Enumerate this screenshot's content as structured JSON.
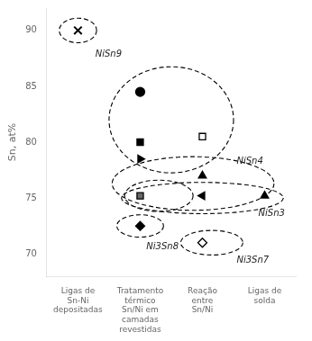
{
  "chart_data": {
    "type": "scatter",
    "ylabel": "Sn, at%",
    "ylim": [
      68,
      92
    ],
    "yticks": [
      70,
      75,
      80,
      85,
      90
    ],
    "grid": false,
    "categories": [
      "Ligas de\nSn-Ni\ndepositadas",
      "Tratamento\ntérmico\nSn/Ni em\ncamadas\nrevestidas",
      "Reação\nentre\nSn/Ni",
      "Ligas de\nsolda"
    ],
    "series": [
      {
        "marker": "x",
        "color": "black",
        "values": [
          90,
          null,
          null,
          null
        ]
      },
      {
        "marker": "circle",
        "color": "black",
        "values": [
          null,
          84.5,
          null,
          null
        ]
      },
      {
        "marker": "square",
        "color": "black",
        "values": [
          null,
          80,
          null,
          null
        ]
      },
      {
        "marker": "triangle_right",
        "color": "black",
        "values": [
          null,
          78.5,
          null,
          null
        ]
      },
      {
        "marker": "square",
        "color": "white",
        "values": [
          null,
          null,
          80.5,
          null
        ]
      },
      {
        "marker": "triangle_up",
        "color": "black",
        "values": [
          null,
          null,
          77,
          null
        ]
      },
      {
        "marker": "square",
        "color": "dimgray",
        "values": [
          null,
          75.2,
          null,
          null
        ]
      },
      {
        "marker": "triangle_left",
        "color": "black",
        "values": [
          null,
          null,
          75.2,
          null
        ]
      },
      {
        "marker": "triangle_up",
        "color": "black",
        "values": [
          null,
          null,
          null,
          75.2
        ]
      },
      {
        "marker": "diamond",
        "color": "black",
        "values": [
          null,
          72.5,
          null,
          null
        ]
      },
      {
        "marker": "diamond",
        "color": "white",
        "values": [
          null,
          null,
          71,
          null
        ]
      }
    ],
    "ellipses": [
      {
        "x": 0.0,
        "y": 90.0,
        "width": 0.6,
        "height": 2.2
      },
      {
        "x": 1.5,
        "y": 82.0,
        "width": 2.0,
        "height": 9.5
      },
      {
        "x": 1.85,
        "y": 76.3,
        "width": 2.6,
        "height": 4.8
      },
      {
        "x": 1.3,
        "y": 75.2,
        "width": 1.1,
        "height": 2.8
      },
      {
        "x": 1.0,
        "y": 72.5,
        "width": 0.75,
        "height": 2.0
      },
      {
        "x": 2.15,
        "y": 71.0,
        "width": 1.0,
        "height": 2.2
      },
      {
        "x": 2.0,
        "y": 75.0,
        "width": 2.6,
        "height": 2.8
      }
    ],
    "annotations": [
      {
        "text": "NiSn9",
        "x": 0.28,
        "y": 88.3
      },
      {
        "text": "NiSn4",
        "x": 2.55,
        "y": 78.7
      },
      {
        "text": "Ni3Sn8",
        "x": 1.1,
        "y": 71.0
      },
      {
        "text": "Ni3Sn7",
        "x": 2.55,
        "y": 69.8
      },
      {
        "text": "NiSn3",
        "x": 2.9,
        "y": 74.0
      }
    ]
  }
}
